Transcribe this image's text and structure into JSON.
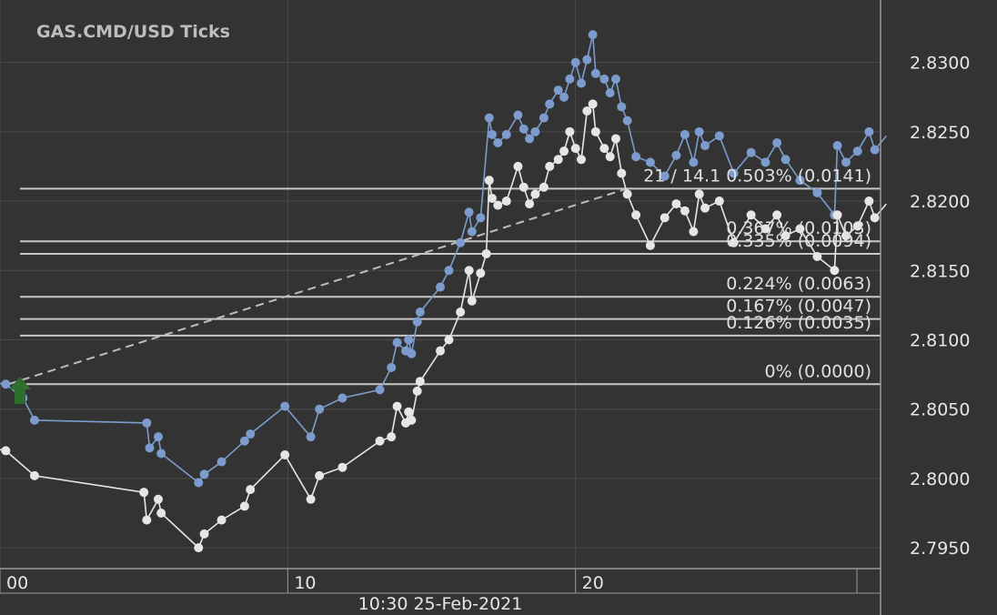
{
  "chart_data": {
    "type": "line",
    "title": "GAS.CMD/USD  Ticks",
    "xlabel": "10:30 25-Feb-2021",
    "ylim": [
      2.7935,
      2.8345
    ],
    "xlim": [
      0,
      30.6
    ],
    "y_ticks": [
      "2.8300",
      "2.8250",
      "2.8200",
      "2.8150",
      "2.8100",
      "2.8050",
      "2.8000",
      "2.7950"
    ],
    "y_tick_values": [
      2.83,
      2.825,
      2.82,
      2.815,
      2.81,
      2.805,
      2.8,
      2.795
    ],
    "x_ticks": [
      "00",
      "10",
      "20"
    ],
    "x_tick_values": [
      0,
      10,
      20
    ],
    "grid": true,
    "colors": {
      "background": "#333333",
      "grid": "#4a4a4a",
      "ask": "#7b9ccc",
      "bid": "#e6e6e6",
      "fib": "#c8c8c8",
      "arrow": "#2e6e2e"
    },
    "series": [
      {
        "values": [
          [
            -1.0,
            2.8072
          ],
          [
            0.2,
            2.8068
          ],
          [
            0.8,
            2.8058
          ],
          [
            1.2,
            2.8042
          ],
          [
            5.1,
            2.804
          ],
          [
            5.2,
            2.8022
          ],
          [
            5.5,
            2.803
          ],
          [
            5.6,
            2.8018
          ],
          [
            6.9,
            2.7997
          ],
          [
            7.1,
            2.8003
          ],
          [
            7.7,
            2.8012
          ],
          [
            8.5,
            2.8027
          ],
          [
            8.7,
            2.8032
          ],
          [
            9.9,
            2.8052
          ],
          [
            10.8,
            2.803
          ],
          [
            11.1,
            2.805
          ],
          [
            11.9,
            2.8058
          ],
          [
            13.2,
            2.8064
          ],
          [
            13.6,
            2.808
          ],
          [
            13.8,
            2.8098
          ],
          [
            14.1,
            2.8092
          ],
          [
            14.2,
            2.81
          ],
          [
            14.3,
            2.809
          ],
          [
            14.5,
            2.8113
          ],
          [
            14.6,
            2.812
          ],
          [
            15.3,
            2.8138
          ],
          [
            15.6,
            2.815
          ],
          [
            16.0,
            2.817
          ],
          [
            16.3,
            2.8192
          ],
          [
            16.4,
            2.8178
          ],
          [
            16.7,
            2.8188
          ],
          [
            17.0,
            2.826
          ],
          [
            17.1,
            2.8248
          ],
          [
            17.3,
            2.8242
          ],
          [
            17.6,
            2.8248
          ],
          [
            18.0,
            2.8262
          ],
          [
            18.2,
            2.8252
          ],
          [
            18.4,
            2.8245
          ],
          [
            18.6,
            2.825
          ],
          [
            18.9,
            2.826
          ],
          [
            19.1,
            2.827
          ],
          [
            19.4,
            2.828
          ],
          [
            19.6,
            2.8275
          ],
          [
            19.8,
            2.8288
          ],
          [
            20.0,
            2.83
          ],
          [
            20.2,
            2.8285
          ],
          [
            20.4,
            2.8302
          ],
          [
            20.6,
            2.832
          ],
          [
            20.7,
            2.8292
          ],
          [
            21.0,
            2.8288
          ],
          [
            21.2,
            2.8278
          ],
          [
            21.4,
            2.8288
          ],
          [
            21.6,
            2.8268
          ],
          [
            21.8,
            2.8258
          ],
          [
            22.1,
            2.8232
          ],
          [
            22.6,
            2.8228
          ],
          [
            23.1,
            2.8218
          ],
          [
            23.5,
            2.8233
          ],
          [
            23.8,
            2.8248
          ],
          [
            24.1,
            2.8228
          ],
          [
            24.3,
            2.825
          ],
          [
            24.5,
            2.824
          ],
          [
            25.0,
            2.8247
          ],
          [
            25.5,
            2.822
          ],
          [
            26.1,
            2.8235
          ],
          [
            26.6,
            2.8228
          ],
          [
            27.0,
            2.8242
          ],
          [
            27.3,
            2.823
          ],
          [
            27.8,
            2.8215
          ],
          [
            28.4,
            2.8206
          ],
          [
            29.0,
            2.819
          ],
          [
            29.1,
            2.824
          ],
          [
            29.4,
            2.8228
          ],
          [
            29.8,
            2.8236
          ],
          [
            30.2,
            2.825
          ],
          [
            30.4,
            2.8237
          ],
          [
            30.8,
            2.8247
          ]
        ]
      },
      {
        "values": [
          [
            -1.0,
            2.8025
          ],
          [
            0.2,
            2.802
          ],
          [
            1.2,
            2.8002
          ],
          [
            5.0,
            2.799
          ],
          [
            5.1,
            2.797
          ],
          [
            5.5,
            2.7985
          ],
          [
            5.6,
            2.7975
          ],
          [
            6.9,
            2.795
          ],
          [
            7.1,
            2.796
          ],
          [
            7.7,
            2.797
          ],
          [
            8.5,
            2.798
          ],
          [
            8.7,
            2.7992
          ],
          [
            9.9,
            2.8017
          ],
          [
            10.8,
            2.7985
          ],
          [
            11.1,
            2.8002
          ],
          [
            11.9,
            2.8008
          ],
          [
            13.2,
            2.8027
          ],
          [
            13.6,
            2.803
          ],
          [
            13.8,
            2.8052
          ],
          [
            14.1,
            2.804
          ],
          [
            14.2,
            2.8048
          ],
          [
            14.3,
            2.8042
          ],
          [
            14.5,
            2.8063
          ],
          [
            14.6,
            2.807
          ],
          [
            15.3,
            2.8092
          ],
          [
            15.6,
            2.81
          ],
          [
            16.0,
            2.812
          ],
          [
            16.3,
            2.815
          ],
          [
            16.4,
            2.8128
          ],
          [
            16.7,
            2.8148
          ],
          [
            16.9,
            2.8162
          ],
          [
            17.0,
            2.8215
          ],
          [
            17.1,
            2.8202
          ],
          [
            17.3,
            2.8197
          ],
          [
            17.6,
            2.82
          ],
          [
            18.0,
            2.8225
          ],
          [
            18.2,
            2.821
          ],
          [
            18.4,
            2.8198
          ],
          [
            18.6,
            2.8205
          ],
          [
            18.9,
            2.821
          ],
          [
            19.1,
            2.8225
          ],
          [
            19.4,
            2.823
          ],
          [
            19.6,
            2.8236
          ],
          [
            19.8,
            2.825
          ],
          [
            20.0,
            2.8238
          ],
          [
            20.2,
            2.823
          ],
          [
            20.4,
            2.8265
          ],
          [
            20.6,
            2.827
          ],
          [
            20.7,
            2.825
          ],
          [
            21.0,
            2.8238
          ],
          [
            21.2,
            2.8232
          ],
          [
            21.4,
            2.8245
          ],
          [
            21.6,
            2.822
          ],
          [
            21.8,
            2.8205
          ],
          [
            22.1,
            2.819
          ],
          [
            22.6,
            2.8168
          ],
          [
            23.1,
            2.8188
          ],
          [
            23.5,
            2.8198
          ],
          [
            23.8,
            2.8193
          ],
          [
            24.1,
            2.8178
          ],
          [
            24.3,
            2.8205
          ],
          [
            24.5,
            2.8195
          ],
          [
            25.0,
            2.82
          ],
          [
            25.5,
            2.817
          ],
          [
            26.1,
            2.819
          ],
          [
            26.6,
            2.818
          ],
          [
            27.0,
            2.819
          ],
          [
            27.3,
            2.8175
          ],
          [
            27.8,
            2.818
          ],
          [
            28.4,
            2.816
          ],
          [
            29.0,
            2.815
          ],
          [
            29.1,
            2.819
          ],
          [
            29.4,
            2.8175
          ],
          [
            29.8,
            2.8182
          ],
          [
            30.2,
            2.82
          ],
          [
            30.4,
            2.8188
          ],
          [
            30.8,
            2.8198
          ]
        ]
      }
    ],
    "fib_levels": [
      {
        "label": "21 / 14.1 0.503% (0.0141)",
        "value": 2.8209
      },
      {
        "label": "0.367% (0.0103)",
        "value": 2.8171
      },
      {
        "label": "0.335% (0.0094)",
        "value": 2.8162
      },
      {
        "label": "0.224% (0.0063)",
        "value": 2.8131
      },
      {
        "label": "0.167% (0.0047)",
        "value": 2.8115
      },
      {
        "label": "0.126% (0.0035)",
        "value": 2.8103
      },
      {
        "label": "0% (0.0000)",
        "value": 2.8068
      }
    ],
    "trend_line": {
      "from": [
        0.3,
        2.8068
      ],
      "to": [
        21.8,
        2.8209
      ]
    },
    "marker": {
      "type": "arrow-up",
      "x": 0.0,
      "y": 2.8059
    }
  }
}
